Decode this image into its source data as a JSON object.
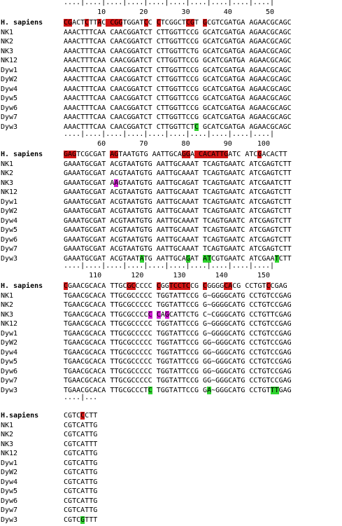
{
  "blocks": [
    {
      "ruler_ticks": "....|....|....|....|....|....|....|....|....|....|",
      "ruler_numbers": [
        {
          "n": "10",
          "col": 9
        },
        {
          "n": "20",
          "col": 19
        },
        {
          "n": "30",
          "col": 29
        },
        {
          "n": "40",
          "col": 39
        },
        {
          "n": "50",
          "col": 49
        }
      ],
      "rows": [
        {
          "name": "H. sapiens",
          "seq": "CGACTCTTAC CGGTGGATCC CTCGGCTCGT GCGTCGATGA AGAACGCAGC",
          "hl": [
            {
              "c": 0,
              "k": "red"
            },
            {
              "c": 1,
              "k": "red"
            },
            {
              "c": 5,
              "k": "red"
            },
            {
              "c": 8,
              "k": "red"
            },
            {
              "c": 10,
              "k": "red"
            },
            {
              "c": 11,
              "k": "red"
            },
            {
              "c": 12,
              "k": "red"
            },
            {
              "c": 13,
              "k": "red"
            },
            {
              "c": 19,
              "k": "red"
            },
            {
              "c": 22,
              "k": "red"
            },
            {
              "c": 29,
              "k": "red"
            },
            {
              "c": 30,
              "k": "red"
            },
            {
              "c": 33,
              "k": "red"
            }
          ]
        },
        {
          "name": "NK1",
          "seq": "AAACTTTCAA CAACGGATCT CTTGGTTCCG GCATCGATGA AGAACGCAGC",
          "hl": []
        },
        {
          "name": "NK2",
          "seq": "AAACTTTCAA CAACGGATCT CTTGGTTCCG GCATCGATGA AGAACGCAGC",
          "hl": []
        },
        {
          "name": "NK3",
          "seq": "AAACTTTCAA CAACGGATCT CTTGGTTCTG GCATCGATGA AGAACGCAGC",
          "hl": []
        },
        {
          "name": "NK12",
          "seq": "AAACTTTCAA CAACGGATCT CTTGGTTCCG GCATCGATGA AGAACGCAGC",
          "hl": []
        },
        {
          "name": "Dyw1",
          "seq": "AAACTTTCAA CAACGGATCT CTTGGTTCCG GCATCGATGA AGAACGCAGC",
          "hl": []
        },
        {
          "name": "DyW2",
          "seq": "AAACTTTCAA CAACGGATCT CTTGGTTCCG GCATCGATGA AGAACGCAGC",
          "hl": []
        },
        {
          "name": "Dyw4",
          "seq": "AAACTTTCAA CAACGGATCT CTTGGTTCCG GCATCGATGA AGAACGCAGC",
          "hl": []
        },
        {
          "name": "Dyw5",
          "seq": "AAACTTTCAA CAACGGATCT CTTGGTTCCG GCATCGATGA AGAACGCAGC",
          "hl": []
        },
        {
          "name": "Dyw6",
          "seq": "AAACTTTCAA CAACGGATCT CTTGGTTCCG GCATCGATGA AGAACGCAGC",
          "hl": []
        },
        {
          "name": "Dyw7",
          "seq": "AAACTTTCAA CAACGGATCT CTTGGTTCCG GCATCGATGA AGAACGCAGC",
          "hl": []
        },
        {
          "name": "Dyw3",
          "seq": "AAACTTTCAA CAACGGATCT CTTGGTTCTC GCATCGATGA AGAACGCAGC",
          "hl": [
            {
              "c": 31,
              "k": "green"
            }
          ]
        }
      ]
    },
    {
      "ruler_ticks": "....|....|....|....|....|....|....|....|....|....|",
      "ruler_numbers": [
        {
          "n": "60",
          "col": 9
        },
        {
          "n": "70",
          "col": 19
        },
        {
          "n": "80",
          "col": 29
        },
        {
          "n": "90",
          "col": 39
        },
        {
          "n": "100",
          "col": 48
        }
      ],
      "rows": [
        {
          "name": "H. sapiens",
          "seq": "GAGTCGCGAT AGTAATGTG AATTGCAGGA CACATTGATC ATCGACACTT",
          "hl": [
            {
              "c": 0,
              "k": "red"
            },
            {
              "c": 1,
              "k": "red"
            },
            {
              "c": 2,
              "k": "red"
            },
            {
              "c": 11,
              "k": "red"
            },
            {
              "c": 12,
              "k": "red"
            },
            {
              "c": 28,
              "k": "red"
            },
            {
              "c": 29,
              "k": "red"
            },
            {
              "c": 31,
              "k": "red"
            },
            {
              "c": 32,
              "k": "red"
            },
            {
              "c": 33,
              "k": "red"
            },
            {
              "c": 34,
              "k": "red"
            },
            {
              "c": 35,
              "k": "red"
            },
            {
              "c": 36,
              "k": "red"
            },
            {
              "c": 37,
              "k": "red"
            },
            {
              "c": 38,
              "k": "red"
            },
            {
              "c": 46,
              "k": "red"
            }
          ]
        },
        {
          "name": "NK1",
          "seq": "GAAATGCGAT ACGTAATGTG AATTGCAAAT TCAGTGAATC ATCGAGTCTT",
          "hl": []
        },
        {
          "name": "NK2",
          "seq": "GAAATGCGAT ACGTAATGTG AATTGCAAAT TCAGTGAATC ATCGAGTCTT",
          "hl": []
        },
        {
          "name": "NK3",
          "seq": "GAAATGCGAT AAGTAATGTG AATTGCAGAT TCAGTGAATC ATCGAATCTT",
          "hl": [
            {
              "c": 12,
              "k": "mag"
            }
          ]
        },
        {
          "name": "NK12",
          "seq": "GAAATGCGAT ACGTAATGTG AATTGCAAAT TCAGTGAATC ATCGAGTCTT",
          "hl": []
        },
        {
          "name": "Dyw1",
          "seq": "GAAATGCGAT ACGTAATGTG AATTGCAAAT TCAGTGAATC ATCGAGTCTT",
          "hl": []
        },
        {
          "name": "DyW2",
          "seq": "GAAATGCGAT ACGTAATGTG AATTGCAAAT TCAGTGAATC ATCGAGTCTT",
          "hl": []
        },
        {
          "name": "Dyw4",
          "seq": "GAAATGCGAT ACGTAATGTG AATTGCAAAT TCAGTGAATC ATCGAGTCTT",
          "hl": []
        },
        {
          "name": "Dyw5",
          "seq": "GAAATGCGAT ACGTAATGTG AATTGCAAAT TCAGTGAATC ATCGAGTCTT",
          "hl": []
        },
        {
          "name": "Dyw6",
          "seq": "GAAATGCGAT ACGTAATGTG AATTGCAAAT TCAGTGAATC ATCGAGTCTT",
          "hl": []
        },
        {
          "name": "Dyw7",
          "seq": "GAAATGCGAT ACGTAATGTG AATTGCAAAT TCAGTGAATC ATCGAGTCTT",
          "hl": []
        },
        {
          "name": "Dyw3",
          "seq": "GAAATGCGAT ACGTAATATG AATTGCAGAT ATCGTGAATC ATCGAATCTT",
          "hl": [
            {
              "c": 18,
              "k": "green"
            },
            {
              "c": 29,
              "k": "green"
            },
            {
              "c": 33,
              "k": "green"
            },
            {
              "c": 34,
              "k": "green"
            },
            {
              "c": 50,
              "k": "green"
            }
          ]
        }
      ]
    },
    {
      "ruler_ticks": "....|....|....|....|....|....|....|....|....|....|",
      "ruler_numbers": [
        {
          "n": "110",
          "col": 8
        },
        {
          "n": "120",
          "col": 18
        },
        {
          "n": "130",
          "col": 28
        },
        {
          "n": "140",
          "col": 38
        },
        {
          "n": "150",
          "col": 48
        }
      ],
      "rows": [
        {
          "name": "H. sapiens",
          "seq": "CGAACGCACA TTGCGCCCCC CGGTCCTCCG CGGGGCACG CCTGTCCGAG",
          "hl": [
            {
              "c": 0,
              "k": "red"
            },
            {
              "c": 15,
              "k": "red"
            },
            {
              "c": 16,
              "k": "red"
            },
            {
              "c": 22,
              "k": "red"
            },
            {
              "c": 25,
              "k": "red"
            },
            {
              "c": 26,
              "k": "red"
            },
            {
              "c": 27,
              "k": "red"
            },
            {
              "c": 28,
              "k": "red"
            },
            {
              "c": 29,
              "k": "red"
            },
            {
              "c": 33,
              "k": "red"
            },
            {
              "c": 38,
              "k": "red"
            },
            {
              "c": 39,
              "k": "red"
            },
            {
              "c": 48,
              "k": "red"
            }
          ]
        },
        {
          "name": "NK1",
          "seq": "TGAACGCACA TTGCGCCCCC TGGTATTCCG G~GGGGCATG CCTGTCCGAG",
          "hl": []
        },
        {
          "name": "NK2",
          "seq": "TGAACGCACA TTGCGCCCCC TGGTATTCCG G~GGGGCATG CCTGTCCGAG",
          "hl": []
        },
        {
          "name": "NK3",
          "seq": "TGAACGCACA TTGCGCCCCC CAGCATTCTG C~CGGGCATG CCTGTTCGAG",
          "hl": [
            {
              "c": 20,
              "k": "mag"
            },
            {
              "c": 22,
              "k": "mag"
            },
            {
              "c": 24,
              "k": "mag"
            }
          ]
        },
        {
          "name": "NK12",
          "seq": "TGAACGCACA TTGCGCCCCC TGGTATTCCG G~GGGGCATG CCTGTCCGAG",
          "hl": []
        },
        {
          "name": "Dyw1",
          "seq": "TGAACGCACA TTGCGCCCCC TGGTATTCCG G~GGGGCATG CCTGTCCGAG",
          "hl": []
        },
        {
          "name": "DyW2",
          "seq": "TGAACGCACA TTGCGCCCCC TGGTATTCCG GG~GGGCATG CCTGTCCGAG",
          "hl": []
        },
        {
          "name": "Dyw4",
          "seq": "TGAACGCACA TTGCGCCCCC TGGTATTCCG GG~GGGCATG CCTGTCCGAG",
          "hl": []
        },
        {
          "name": "Dyw5",
          "seq": "TGAACGCACA TTGCGCCCCC TGGTATTCCG GG~GGGCATG CCTGTCCGAG",
          "hl": []
        },
        {
          "name": "Dyw6",
          "seq": "TGAACGCACA TTGCGCCCCC TGGTATTCCG GG~GGGCATG CCTGTCCGAG",
          "hl": []
        },
        {
          "name": "Dyw7",
          "seq": "TGAACGCACA TTGCGCCCCC TGGTATTCCG GG~GGGCATG CCTGTCCGAG",
          "hl": []
        },
        {
          "name": "Dyw3",
          "seq": "TGAACGCACA TTGCGCCCTC TGGTATTCCG GA~GGGCATG CCTGTTTGAG",
          "hl": [
            {
              "c": 20,
              "k": "green"
            },
            {
              "c": 34,
              "k": "green"
            },
            {
              "c": 49,
              "k": "green"
            },
            {
              "c": 50,
              "k": "green"
            }
          ]
        }
      ]
    },
    {
      "ruler_ticks": "....|...",
      "ruler_numbers": [],
      "rows": [
        {
          "name": "H.sapiens",
          "seq": "CGTCCCTT",
          "hl": [
            {
              "c": 4,
              "k": "red"
            }
          ]
        },
        {
          "name": "NK1",
          "seq": "CGTCATTG",
          "hl": []
        },
        {
          "name": "NK2",
          "seq": "CGTCATTG",
          "hl": []
        },
        {
          "name": "NK3",
          "seq": "CGTCATTT",
          "hl": []
        },
        {
          "name": "NK12",
          "seq": "CGTCATTG",
          "hl": []
        },
        {
          "name": "Dyw1",
          "seq": "CGTCATTG",
          "hl": []
        },
        {
          "name": "DyW2",
          "seq": "CGTCATTG",
          "hl": []
        },
        {
          "name": "Dyw4",
          "seq": "CGTCATTG",
          "hl": []
        },
        {
          "name": "Dyw5",
          "seq": "CGTCATTG",
          "hl": []
        },
        {
          "name": "Dyw6",
          "seq": "CGTCATTG",
          "hl": []
        },
        {
          "name": "Dyw7",
          "seq": "CGTCATTG",
          "hl": []
        },
        {
          "name": "Dyw3",
          "seq": "CGTCGTTT",
          "hl": [
            {
              "c": 4,
              "k": "green"
            }
          ]
        }
      ]
    }
  ],
  "colors": {
    "red": "#d31515",
    "green": "#2fd42f",
    "mag": "#d01bd0"
  }
}
